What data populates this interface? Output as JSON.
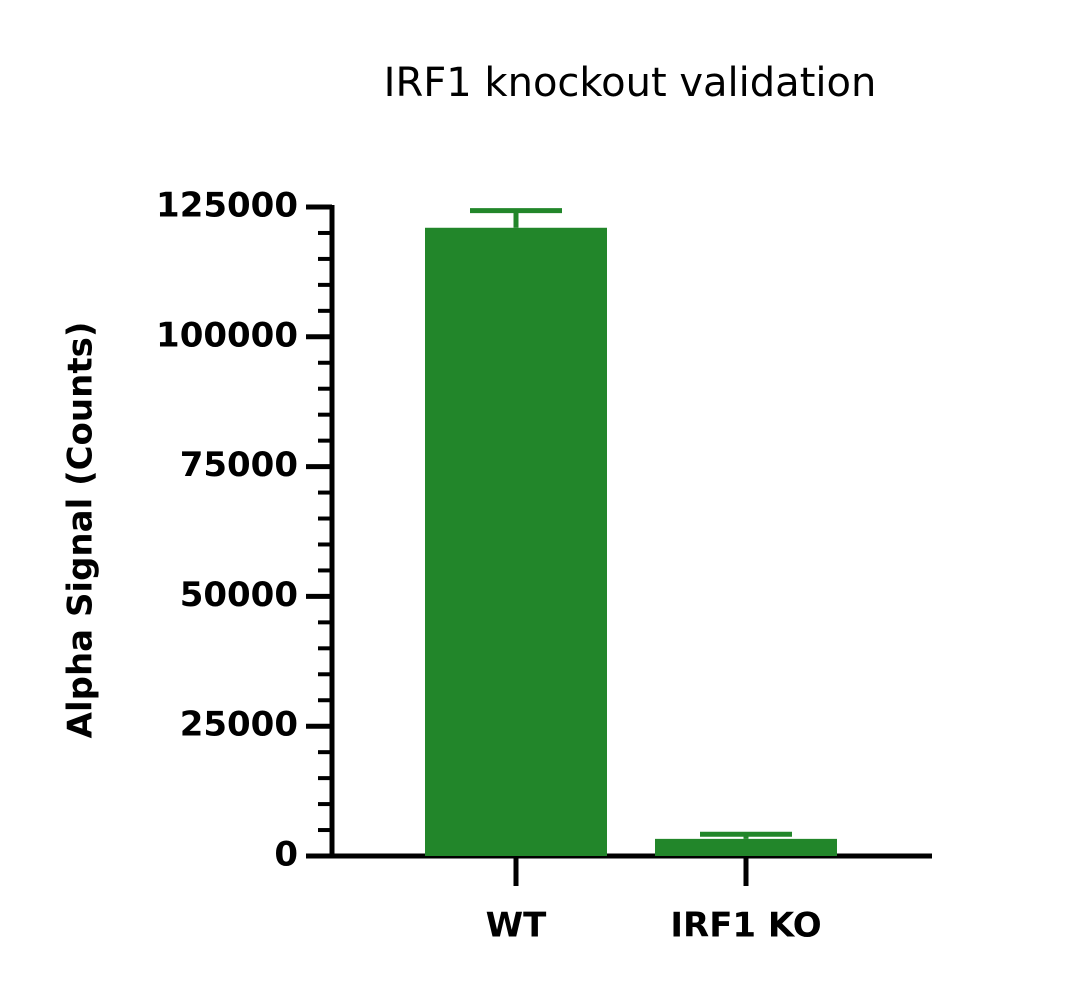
{
  "chart_data": {
    "type": "bar",
    "title": "IRF1 knockout validation",
    "y_label": "Alpha Signal (Counts)",
    "categories": [
      "WT",
      "IRF1 KO"
    ],
    "values": [
      121000,
      3300
    ],
    "errors": [
      3300,
      900
    ],
    "color": "#22862a",
    "ylim": [
      0,
      125000
    ],
    "yticks": [
      0,
      25000,
      50000,
      75000,
      100000,
      125000
    ],
    "minor_yticks": [
      5000,
      10000,
      15000,
      20000,
      30000,
      35000,
      40000,
      45000,
      55000,
      60000,
      65000,
      70000,
      80000,
      85000,
      90000,
      95000,
      105000,
      110000,
      115000,
      120000
    ],
    "grid": false
  }
}
